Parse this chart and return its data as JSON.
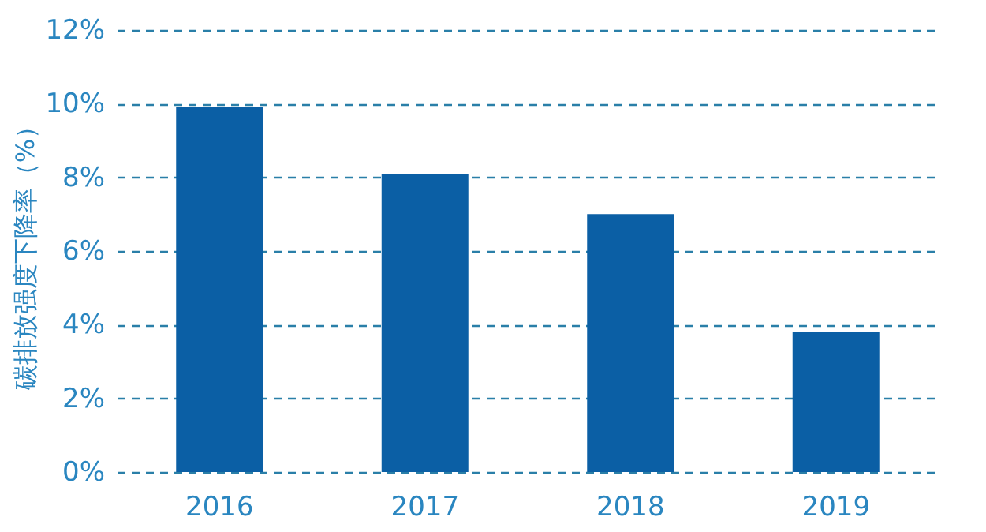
{
  "chart_data": {
    "type": "bar",
    "ylabel": "碳排放强度下降率（%）",
    "categories": [
      "2016",
      "2017",
      "2018",
      "2019"
    ],
    "values": [
      9.9,
      8.1,
      7.0,
      3.8
    ],
    "color": "#0b5fa5",
    "ylim": [
      0,
      12
    ],
    "yticks": [
      {
        "value": 0,
        "label": "0%"
      },
      {
        "value": 2,
        "label": "2%"
      },
      {
        "value": 4,
        "label": "4%"
      },
      {
        "value": 6,
        "label": "6%"
      },
      {
        "value": 8,
        "label": "8%"
      },
      {
        "value": 10,
        "label": "10%"
      },
      {
        "value": 12,
        "label": "12%"
      }
    ],
    "grid": "y"
  }
}
